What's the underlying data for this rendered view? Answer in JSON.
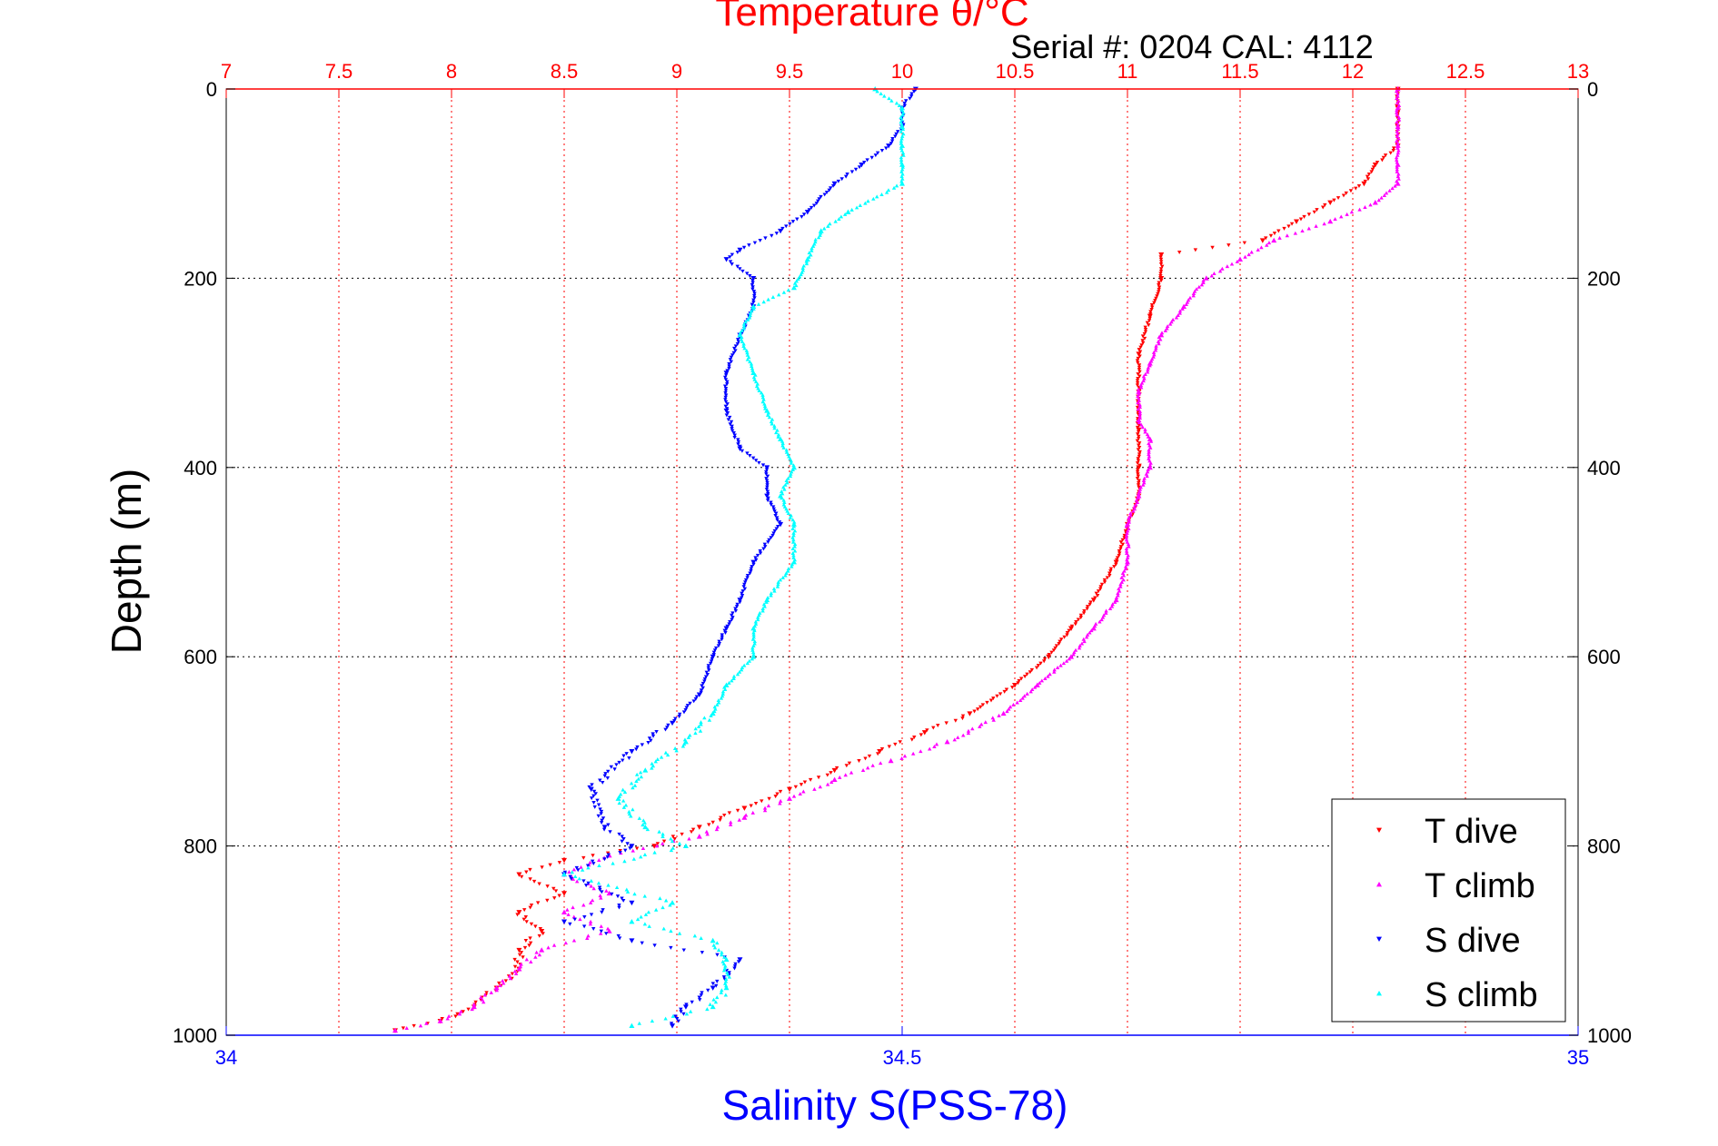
{
  "chart_data": {
    "type": "scatter",
    "title": "Temperature θ/°C",
    "subtitle": "Serial #: 0204  CAL: 4112",
    "ylabel": "Depth (m)",
    "xlabel": "Salinity S(PSS-78)",
    "temperature_axis": {
      "position": "top",
      "range": [
        7,
        13
      ],
      "ticks": [
        "7",
        "7.5",
        "8",
        "8.5",
        "9",
        "9.5",
        "10",
        "10.5",
        "11",
        "11.5",
        "12",
        "12.5",
        "13"
      ],
      "color": "#ff0000"
    },
    "salinity_axis": {
      "position": "bottom",
      "range": [
        34,
        35
      ],
      "ticks": [
        "34",
        "34.5",
        "35"
      ],
      "color": "#0000ff"
    },
    "depth_axis": {
      "range": [
        0,
        1000
      ],
      "reversed": true,
      "ticks": [
        "0",
        "200",
        "400",
        "600",
        "800",
        "1000"
      ]
    },
    "grid": true,
    "legend": {
      "position": "bottom-right",
      "entries": [
        "T dive",
        "T climb",
        "S dive",
        "S climb"
      ]
    },
    "series": [
      {
        "name": "T dive",
        "axis": "temperature",
        "color": "#ff0000",
        "marker": "triangle-down",
        "points": [
          [
            12.2,
            0
          ],
          [
            12.2,
            20
          ],
          [
            12.2,
            40
          ],
          [
            12.2,
            60
          ],
          [
            12.1,
            80
          ],
          [
            12.05,
            100
          ],
          [
            11.9,
            120
          ],
          [
            11.75,
            140
          ],
          [
            11.6,
            160
          ],
          [
            11.15,
            175
          ],
          [
            11.15,
            200
          ],
          [
            11.1,
            240
          ],
          [
            11.05,
            280
          ],
          [
            11.05,
            320
          ],
          [
            11.05,
            360
          ],
          [
            11.05,
            400
          ],
          [
            11.05,
            430
          ],
          [
            11.0,
            460
          ],
          [
            10.95,
            500
          ],
          [
            10.85,
            540
          ],
          [
            10.75,
            570
          ],
          [
            10.65,
            600
          ],
          [
            10.5,
            630
          ],
          [
            10.3,
            660
          ],
          [
            10.1,
            680
          ],
          [
            9.9,
            700
          ],
          [
            9.7,
            720
          ],
          [
            9.5,
            740
          ],
          [
            9.3,
            760
          ],
          [
            9.1,
            780
          ],
          [
            8.9,
            800
          ],
          [
            8.5,
            815
          ],
          [
            8.3,
            830
          ],
          [
            8.5,
            850
          ],
          [
            8.3,
            870
          ],
          [
            8.4,
            890
          ],
          [
            8.3,
            910
          ],
          [
            8.3,
            930
          ],
          [
            8.2,
            950
          ],
          [
            8.1,
            970
          ],
          [
            7.95,
            985
          ],
          [
            7.75,
            995
          ]
        ]
      },
      {
        "name": "T climb",
        "axis": "temperature",
        "color": "#ff00ff",
        "marker": "triangle-up",
        "points": [
          [
            12.2,
            0
          ],
          [
            12.2,
            20
          ],
          [
            12.2,
            40
          ],
          [
            12.2,
            60
          ],
          [
            12.2,
            80
          ],
          [
            12.2,
            100
          ],
          [
            12.1,
            120
          ],
          [
            11.9,
            140
          ],
          [
            11.65,
            160
          ],
          [
            11.5,
            180
          ],
          [
            11.35,
            200
          ],
          [
            11.25,
            230
          ],
          [
            11.15,
            260
          ],
          [
            11.1,
            290
          ],
          [
            11.05,
            320
          ],
          [
            11.05,
            350
          ],
          [
            11.1,
            370
          ],
          [
            11.1,
            400
          ],
          [
            11.05,
            430
          ],
          [
            11.0,
            460
          ],
          [
            11.0,
            500
          ],
          [
            10.95,
            540
          ],
          [
            10.85,
            570
          ],
          [
            10.75,
            600
          ],
          [
            10.6,
            630
          ],
          [
            10.45,
            660
          ],
          [
            10.2,
            690
          ],
          [
            9.95,
            710
          ],
          [
            9.7,
            730
          ],
          [
            9.5,
            750
          ],
          [
            9.3,
            770
          ],
          [
            9.1,
            790
          ],
          [
            8.7,
            810
          ],
          [
            8.5,
            830
          ],
          [
            8.7,
            850
          ],
          [
            8.5,
            870
          ],
          [
            8.7,
            890
          ],
          [
            8.4,
            910
          ],
          [
            8.3,
            930
          ],
          [
            8.2,
            950
          ],
          [
            8.1,
            970
          ],
          [
            7.95,
            985
          ],
          [
            7.75,
            995
          ]
        ]
      },
      {
        "name": "S dive",
        "axis": "salinity",
        "color": "#0000ff",
        "marker": "triangle-down",
        "points": [
          [
            34.51,
            0
          ],
          [
            34.5,
            20
          ],
          [
            34.5,
            40
          ],
          [
            34.49,
            60
          ],
          [
            34.47,
            80
          ],
          [
            34.45,
            100
          ],
          [
            34.43,
            130
          ],
          [
            34.41,
            150
          ],
          [
            34.38,
            170
          ],
          [
            34.37,
            180
          ],
          [
            34.39,
            200
          ],
          [
            34.39,
            230
          ],
          [
            34.38,
            260
          ],
          [
            34.37,
            300
          ],
          [
            34.37,
            340
          ],
          [
            34.38,
            380
          ],
          [
            34.4,
            400
          ],
          [
            34.4,
            430
          ],
          [
            34.41,
            460
          ],
          [
            34.39,
            500
          ],
          [
            34.38,
            540
          ],
          [
            34.37,
            570
          ],
          [
            34.36,
            600
          ],
          [
            34.35,
            640
          ],
          [
            34.33,
            670
          ],
          [
            34.3,
            700
          ],
          [
            34.27,
            740
          ],
          [
            34.28,
            780
          ],
          [
            34.3,
            800
          ],
          [
            34.25,
            830
          ],
          [
            34.3,
            860
          ],
          [
            34.25,
            880
          ],
          [
            34.3,
            900
          ],
          [
            34.38,
            920
          ],
          [
            34.36,
            950
          ],
          [
            34.34,
            970
          ],
          [
            34.33,
            990
          ]
        ]
      },
      {
        "name": "S climb",
        "axis": "salinity",
        "color": "#00ffff",
        "marker": "triangle-up",
        "points": [
          [
            34.48,
            0
          ],
          [
            34.5,
            20
          ],
          [
            34.5,
            40
          ],
          [
            34.5,
            60
          ],
          [
            34.5,
            80
          ],
          [
            34.5,
            100
          ],
          [
            34.46,
            130
          ],
          [
            34.44,
            150
          ],
          [
            34.43,
            180
          ],
          [
            34.42,
            210
          ],
          [
            34.39,
            230
          ],
          [
            34.38,
            260
          ],
          [
            34.39,
            300
          ],
          [
            34.4,
            340
          ],
          [
            34.41,
            370
          ],
          [
            34.42,
            400
          ],
          [
            34.41,
            430
          ],
          [
            34.42,
            460
          ],
          [
            34.42,
            500
          ],
          [
            34.4,
            540
          ],
          [
            34.39,
            570
          ],
          [
            34.39,
            600
          ],
          [
            34.37,
            630
          ],
          [
            34.36,
            660
          ],
          [
            34.34,
            690
          ],
          [
            34.31,
            720
          ],
          [
            34.29,
            750
          ],
          [
            34.31,
            780
          ],
          [
            34.34,
            800
          ],
          [
            34.25,
            830
          ],
          [
            34.33,
            860
          ],
          [
            34.3,
            880
          ],
          [
            34.36,
            900
          ],
          [
            34.37,
            920
          ],
          [
            34.37,
            950
          ],
          [
            34.36,
            970
          ],
          [
            34.3,
            990
          ]
        ]
      }
    ]
  }
}
